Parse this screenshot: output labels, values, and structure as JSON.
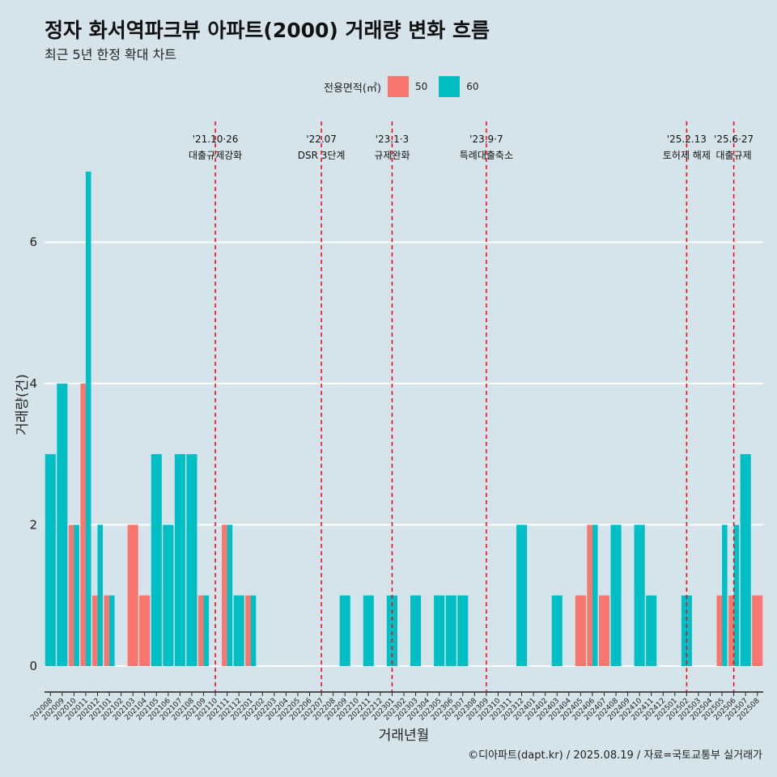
{
  "title": "정자 화서역파크뷰 아파트(2000) 거래량 변화 흐름",
  "subtitle": "최근 5년 한정 확대 차트",
  "footer": "©디아파트(dapt.kr) / 2025.08.19 / 자료=국토교통부 실거래가",
  "legend": {
    "title": "전용면적(㎡)",
    "items": [
      {
        "label": "50",
        "color": "#f8766d"
      },
      {
        "label": "60",
        "color": "#00bfc4"
      }
    ]
  },
  "chart_data": {
    "type": "bar",
    "xlabel": "거래년월",
    "ylabel": "거래량(건)",
    "ylim": [
      0,
      7.5
    ],
    "yticks": [
      0,
      2,
      4,
      6
    ],
    "grid": true,
    "legend_position": "top",
    "categories": [
      "202008",
      "202009",
      "202010",
      "202011",
      "202012",
      "202101",
      "202102",
      "202103",
      "202104",
      "202105",
      "202106",
      "202107",
      "202108",
      "202109",
      "202110",
      "202111",
      "202112",
      "202201",
      "202202",
      "202203",
      "202204",
      "202205",
      "202206",
      "202207",
      "202208",
      "202209",
      "202210",
      "202211",
      "202212",
      "202301",
      "202302",
      "202303",
      "202304",
      "202305",
      "202306",
      "202307",
      "202308",
      "202309",
      "202310",
      "202311",
      "202312",
      "202401",
      "202402",
      "202403",
      "202404",
      "202405",
      "202406",
      "202407",
      "202408",
      "202409",
      "202410",
      "202411",
      "202412",
      "202501",
      "202502",
      "202503",
      "202504",
      "202505",
      "202506",
      "202507",
      "202508"
    ],
    "series": [
      {
        "name": "50",
        "color": "#f8766d",
        "values": [
          0,
          0,
          2,
          4,
          1,
          1,
          0,
          2,
          1,
          0,
          0,
          0,
          0,
          1,
          0,
          2,
          0,
          1,
          0,
          0,
          0,
          0,
          0,
          0,
          0,
          0,
          0,
          0,
          0,
          0,
          0,
          0,
          0,
          0,
          0,
          0,
          0,
          0,
          0,
          0,
          0,
          0,
          0,
          0,
          0,
          1,
          2,
          1,
          0,
          0,
          0,
          0,
          0,
          0,
          0,
          0,
          0,
          1,
          1,
          0,
          1
        ]
      },
      {
        "name": "60",
        "color": "#00bfc4",
        "values": [
          3,
          4,
          2,
          7,
          2,
          1,
          0,
          0,
          0,
          3,
          2,
          3,
          3,
          1,
          0,
          2,
          1,
          1,
          0,
          0,
          0,
          0,
          0,
          0,
          0,
          1,
          0,
          1,
          0,
          1,
          0,
          1,
          0,
          1,
          1,
          1,
          0,
          0,
          0,
          0,
          2,
          0,
          0,
          1,
          0,
          0,
          2,
          0,
          2,
          0,
          2,
          1,
          0,
          0,
          1,
          0,
          0,
          2,
          2,
          3,
          0
        ]
      }
    ],
    "events": [
      {
        "date_label": "'21.10·26",
        "desc": "대출규제강화",
        "at": "202110"
      },
      {
        "date_label": "'22.07",
        "desc": "DSR 3단계",
        "at": "202207"
      },
      {
        "date_label": "'23.1·3",
        "desc": "규제완화",
        "at": "202301"
      },
      {
        "date_label": "'23.9·7",
        "desc": "특례대출축소",
        "at": "202309"
      },
      {
        "date_label": "'25.2.13",
        "desc": "토허제 해제",
        "at": "202502"
      },
      {
        "date_label": "'25.6·27",
        "desc": "대출규제",
        "at": "202506"
      }
    ]
  }
}
